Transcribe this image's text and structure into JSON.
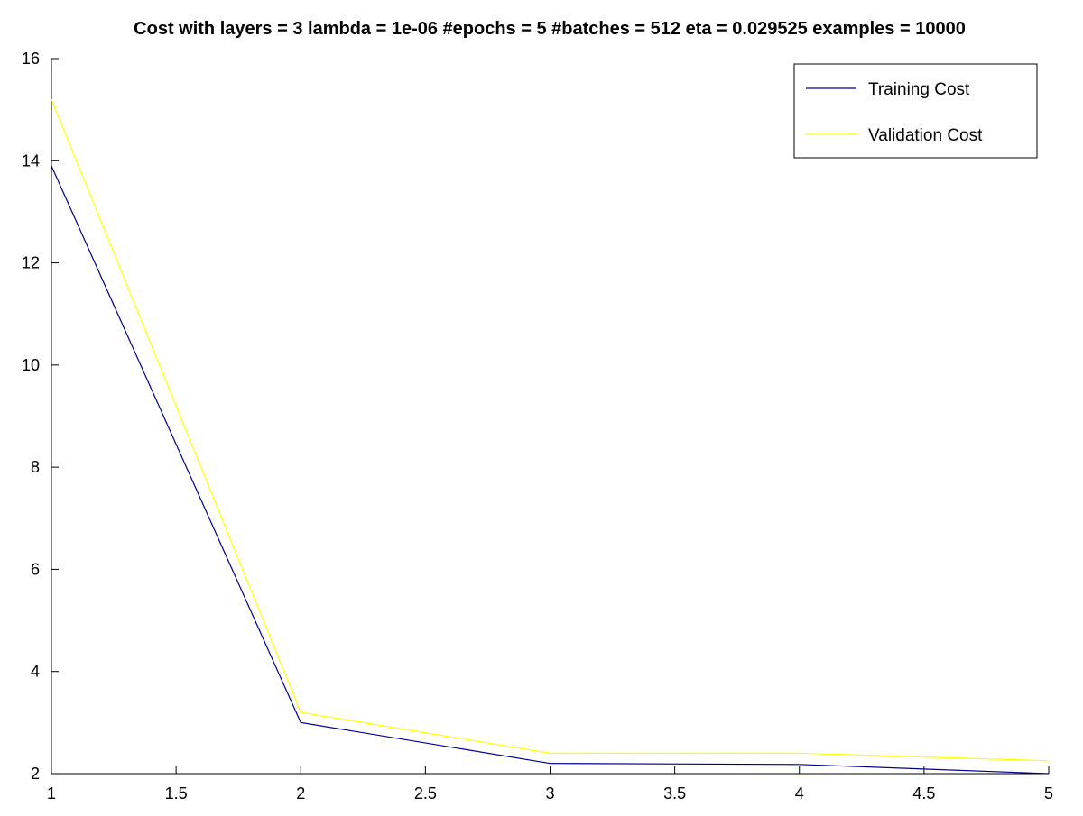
{
  "chart_data": {
    "type": "line",
    "title": "Cost with layers = 3 lambda = 1e-06 #epochs = 5 #batches = 512 eta = 0.029525 examples = 10000",
    "xlabel": "",
    "ylabel": "",
    "x": [
      1,
      2,
      3,
      4,
      5
    ],
    "xlim": [
      1,
      5
    ],
    "ylim": [
      2,
      16
    ],
    "xticks": [
      1,
      1.5,
      2,
      2.5,
      3,
      3.5,
      4,
      4.5,
      5
    ],
    "xtick_labels": [
      "1",
      "1.5",
      "2",
      "2.5",
      "3",
      "3.5",
      "4",
      "4.5",
      "5"
    ],
    "yticks": [
      2,
      4,
      6,
      8,
      10,
      12,
      14,
      16
    ],
    "ytick_labels": [
      "2",
      "4",
      "6",
      "8",
      "10",
      "12",
      "14",
      "16"
    ],
    "grid": false,
    "legend_position": "top-right",
    "series": [
      {
        "name": "Training Cost",
        "color": "#00008b",
        "values": [
          13.9,
          3.0,
          2.2,
          2.18,
          2.0
        ]
      },
      {
        "name": "Validation Cost",
        "color": "#ffff00",
        "values": [
          15.2,
          3.2,
          2.4,
          2.4,
          2.25
        ]
      }
    ]
  }
}
